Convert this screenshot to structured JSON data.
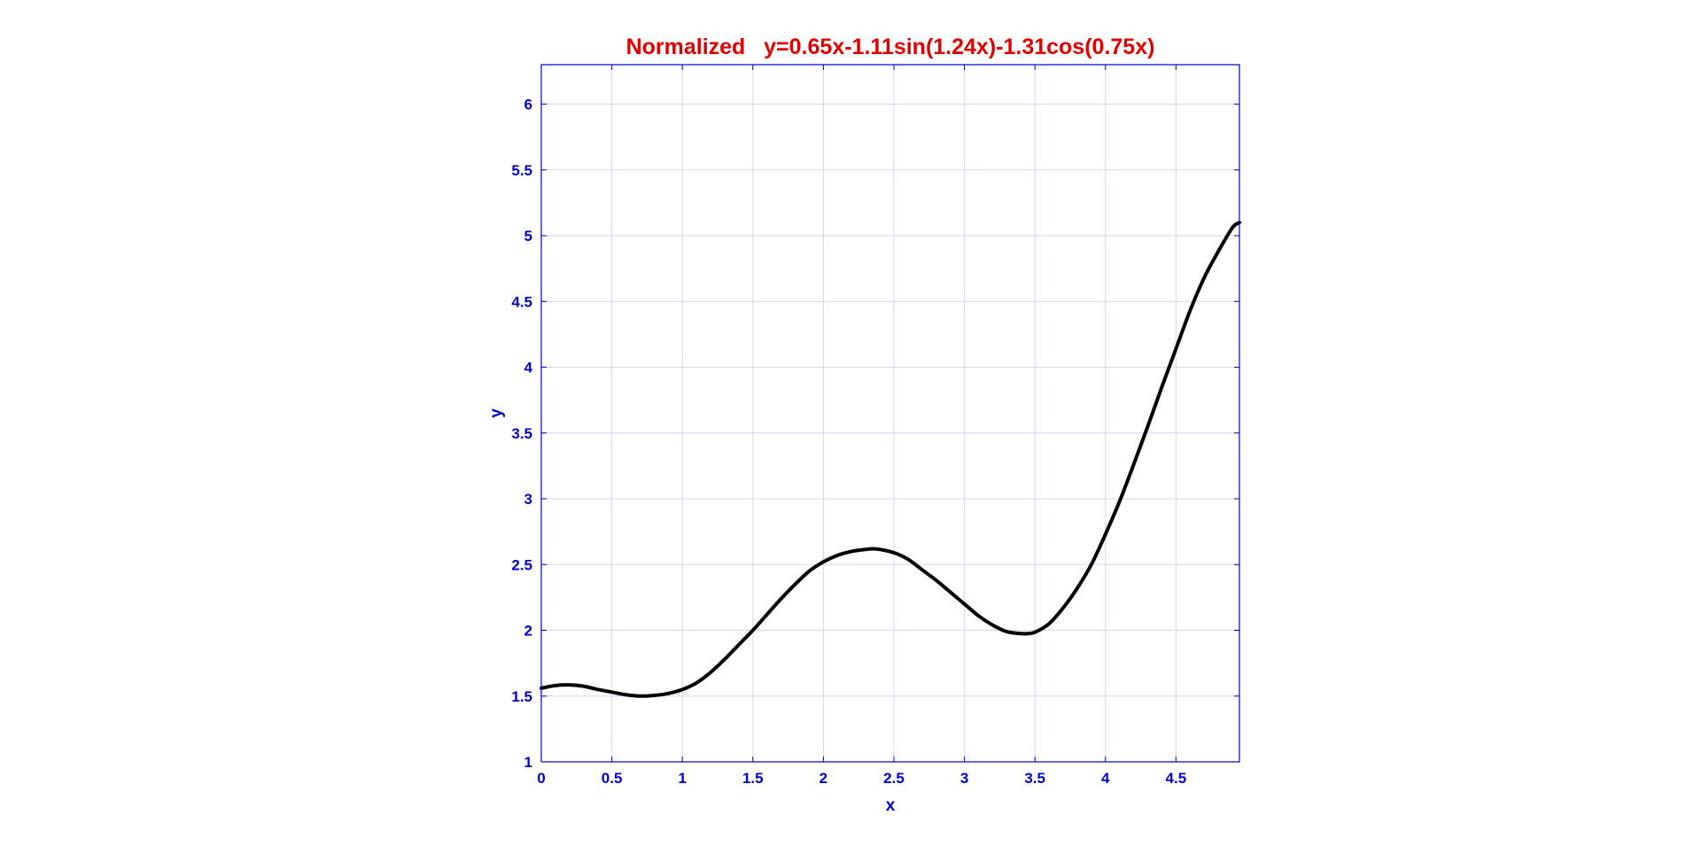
{
  "chart_data": {
    "type": "line",
    "title": "Normalized   y=0.65x-1.11sin(1.24x)-1.31cos(0.75x)",
    "xlabel": "x",
    "ylabel": "y",
    "xlim": [
      0,
      4.95
    ],
    "ylim": [
      1,
      6.3
    ],
    "xticks": [
      0,
      0.5,
      1,
      1.5,
      2,
      2.5,
      3,
      3.5,
      4,
      4.5
    ],
    "xtick_labels": [
      "0",
      "0.5",
      "1",
      "1.5",
      "2",
      "2.5",
      "3",
      "3.5",
      "4",
      "4.5"
    ],
    "yticks": [
      1,
      1.5,
      2,
      2.5,
      3,
      3.5,
      4,
      4.5,
      5,
      5.5,
      6
    ],
    "ytick_labels": [
      "1",
      "1.5",
      "2",
      "2.5",
      "3",
      "3.5",
      "4",
      "4.5",
      "5",
      "5.5",
      "6"
    ],
    "grid": true,
    "series": [
      {
        "color": "#000000",
        "x": [
          0,
          0.1,
          0.2,
          0.3,
          0.4,
          0.5,
          0.6,
          0.7,
          0.8,
          0.9,
          1.0,
          1.1,
          1.2,
          1.3,
          1.4,
          1.5,
          1.6,
          1.7,
          1.8,
          1.9,
          2.0,
          2.1,
          2.2,
          2.3,
          2.35,
          2.4,
          2.5,
          2.6,
          2.7,
          2.8,
          2.9,
          3.0,
          3.1,
          3.2,
          3.3,
          3.4,
          3.45,
          3.5,
          3.6,
          3.7,
          3.8,
          3.9,
          4.0,
          4.1,
          4.2,
          4.3,
          4.4,
          4.5,
          4.6,
          4.7,
          4.8,
          4.9,
          4.95
        ],
        "y": [
          1.56,
          1.58,
          1.585,
          1.575,
          1.55,
          1.53,
          1.51,
          1.5,
          1.505,
          1.52,
          1.55,
          1.6,
          1.68,
          1.78,
          1.89,
          2.0,
          2.12,
          2.24,
          2.35,
          2.45,
          2.52,
          2.57,
          2.6,
          2.615,
          2.62,
          2.615,
          2.59,
          2.54,
          2.46,
          2.38,
          2.29,
          2.2,
          2.11,
          2.04,
          1.99,
          1.975,
          1.975,
          1.985,
          2.05,
          2.17,
          2.32,
          2.5,
          2.73,
          2.98,
          3.26,
          3.55,
          3.85,
          4.14,
          4.43,
          4.68,
          4.88,
          5.06,
          5.1
        ]
      }
    ]
  },
  "colors": {
    "title": "#e00000",
    "axis": "#0000c8",
    "grid": "#d6d6ec",
    "line": "#000000"
  }
}
